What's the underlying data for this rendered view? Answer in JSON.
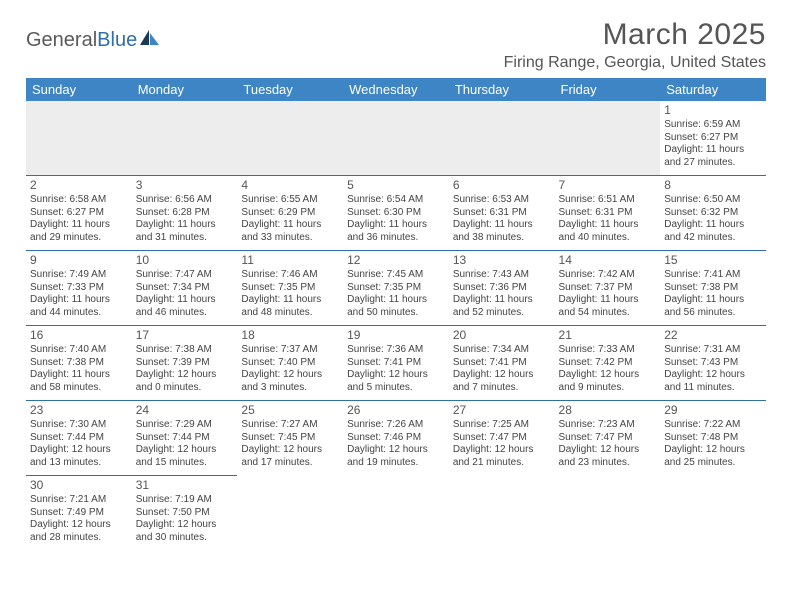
{
  "logo": {
    "text1": "General",
    "text2": "Blue"
  },
  "title": "March 2025",
  "subtitle": "Firing Range, Georgia, United States",
  "header_bg": "#3e85c6",
  "border_color": "#2f6fa8",
  "empty_bg": "#ededed",
  "weekdays": [
    "Sunday",
    "Monday",
    "Tuesday",
    "Wednesday",
    "Thursday",
    "Friday",
    "Saturday"
  ],
  "weeks": [
    [
      null,
      null,
      null,
      null,
      null,
      null,
      {
        "n": "1",
        "sr": "Sunrise: 6:59 AM",
        "ss": "Sunset: 6:27 PM",
        "d1": "Daylight: 11 hours",
        "d2": "and 27 minutes."
      }
    ],
    [
      {
        "n": "2",
        "sr": "Sunrise: 6:58 AM",
        "ss": "Sunset: 6:27 PM",
        "d1": "Daylight: 11 hours",
        "d2": "and 29 minutes."
      },
      {
        "n": "3",
        "sr": "Sunrise: 6:56 AM",
        "ss": "Sunset: 6:28 PM",
        "d1": "Daylight: 11 hours",
        "d2": "and 31 minutes."
      },
      {
        "n": "4",
        "sr": "Sunrise: 6:55 AM",
        "ss": "Sunset: 6:29 PM",
        "d1": "Daylight: 11 hours",
        "d2": "and 33 minutes."
      },
      {
        "n": "5",
        "sr": "Sunrise: 6:54 AM",
        "ss": "Sunset: 6:30 PM",
        "d1": "Daylight: 11 hours",
        "d2": "and 36 minutes."
      },
      {
        "n": "6",
        "sr": "Sunrise: 6:53 AM",
        "ss": "Sunset: 6:31 PM",
        "d1": "Daylight: 11 hours",
        "d2": "and 38 minutes."
      },
      {
        "n": "7",
        "sr": "Sunrise: 6:51 AM",
        "ss": "Sunset: 6:31 PM",
        "d1": "Daylight: 11 hours",
        "d2": "and 40 minutes."
      },
      {
        "n": "8",
        "sr": "Sunrise: 6:50 AM",
        "ss": "Sunset: 6:32 PM",
        "d1": "Daylight: 11 hours",
        "d2": "and 42 minutes."
      }
    ],
    [
      {
        "n": "9",
        "sr": "Sunrise: 7:49 AM",
        "ss": "Sunset: 7:33 PM",
        "d1": "Daylight: 11 hours",
        "d2": "and 44 minutes."
      },
      {
        "n": "10",
        "sr": "Sunrise: 7:47 AM",
        "ss": "Sunset: 7:34 PM",
        "d1": "Daylight: 11 hours",
        "d2": "and 46 minutes."
      },
      {
        "n": "11",
        "sr": "Sunrise: 7:46 AM",
        "ss": "Sunset: 7:35 PM",
        "d1": "Daylight: 11 hours",
        "d2": "and 48 minutes."
      },
      {
        "n": "12",
        "sr": "Sunrise: 7:45 AM",
        "ss": "Sunset: 7:35 PM",
        "d1": "Daylight: 11 hours",
        "d2": "and 50 minutes."
      },
      {
        "n": "13",
        "sr": "Sunrise: 7:43 AM",
        "ss": "Sunset: 7:36 PM",
        "d1": "Daylight: 11 hours",
        "d2": "and 52 minutes."
      },
      {
        "n": "14",
        "sr": "Sunrise: 7:42 AM",
        "ss": "Sunset: 7:37 PM",
        "d1": "Daylight: 11 hours",
        "d2": "and 54 minutes."
      },
      {
        "n": "15",
        "sr": "Sunrise: 7:41 AM",
        "ss": "Sunset: 7:38 PM",
        "d1": "Daylight: 11 hours",
        "d2": "and 56 minutes."
      }
    ],
    [
      {
        "n": "16",
        "sr": "Sunrise: 7:40 AM",
        "ss": "Sunset: 7:38 PM",
        "d1": "Daylight: 11 hours",
        "d2": "and 58 minutes."
      },
      {
        "n": "17",
        "sr": "Sunrise: 7:38 AM",
        "ss": "Sunset: 7:39 PM",
        "d1": "Daylight: 12 hours",
        "d2": "and 0 minutes."
      },
      {
        "n": "18",
        "sr": "Sunrise: 7:37 AM",
        "ss": "Sunset: 7:40 PM",
        "d1": "Daylight: 12 hours",
        "d2": "and 3 minutes."
      },
      {
        "n": "19",
        "sr": "Sunrise: 7:36 AM",
        "ss": "Sunset: 7:41 PM",
        "d1": "Daylight: 12 hours",
        "d2": "and 5 minutes."
      },
      {
        "n": "20",
        "sr": "Sunrise: 7:34 AM",
        "ss": "Sunset: 7:41 PM",
        "d1": "Daylight: 12 hours",
        "d2": "and 7 minutes."
      },
      {
        "n": "21",
        "sr": "Sunrise: 7:33 AM",
        "ss": "Sunset: 7:42 PM",
        "d1": "Daylight: 12 hours",
        "d2": "and 9 minutes."
      },
      {
        "n": "22",
        "sr": "Sunrise: 7:31 AM",
        "ss": "Sunset: 7:43 PM",
        "d1": "Daylight: 12 hours",
        "d2": "and 11 minutes."
      }
    ],
    [
      {
        "n": "23",
        "sr": "Sunrise: 7:30 AM",
        "ss": "Sunset: 7:44 PM",
        "d1": "Daylight: 12 hours",
        "d2": "and 13 minutes."
      },
      {
        "n": "24",
        "sr": "Sunrise: 7:29 AM",
        "ss": "Sunset: 7:44 PM",
        "d1": "Daylight: 12 hours",
        "d2": "and 15 minutes."
      },
      {
        "n": "25",
        "sr": "Sunrise: 7:27 AM",
        "ss": "Sunset: 7:45 PM",
        "d1": "Daylight: 12 hours",
        "d2": "and 17 minutes."
      },
      {
        "n": "26",
        "sr": "Sunrise: 7:26 AM",
        "ss": "Sunset: 7:46 PM",
        "d1": "Daylight: 12 hours",
        "d2": "and 19 minutes."
      },
      {
        "n": "27",
        "sr": "Sunrise: 7:25 AM",
        "ss": "Sunset: 7:47 PM",
        "d1": "Daylight: 12 hours",
        "d2": "and 21 minutes."
      },
      {
        "n": "28",
        "sr": "Sunrise: 7:23 AM",
        "ss": "Sunset: 7:47 PM",
        "d1": "Daylight: 12 hours",
        "d2": "and 23 minutes."
      },
      {
        "n": "29",
        "sr": "Sunrise: 7:22 AM",
        "ss": "Sunset: 7:48 PM",
        "d1": "Daylight: 12 hours",
        "d2": "and 25 minutes."
      }
    ],
    [
      {
        "n": "30",
        "sr": "Sunrise: 7:21 AM",
        "ss": "Sunset: 7:49 PM",
        "d1": "Daylight: 12 hours",
        "d2": "and 28 minutes."
      },
      {
        "n": "31",
        "sr": "Sunrise: 7:19 AM",
        "ss": "Sunset: 7:50 PM",
        "d1": "Daylight: 12 hours",
        "d2": "and 30 minutes."
      },
      null,
      null,
      null,
      null,
      null
    ]
  ]
}
